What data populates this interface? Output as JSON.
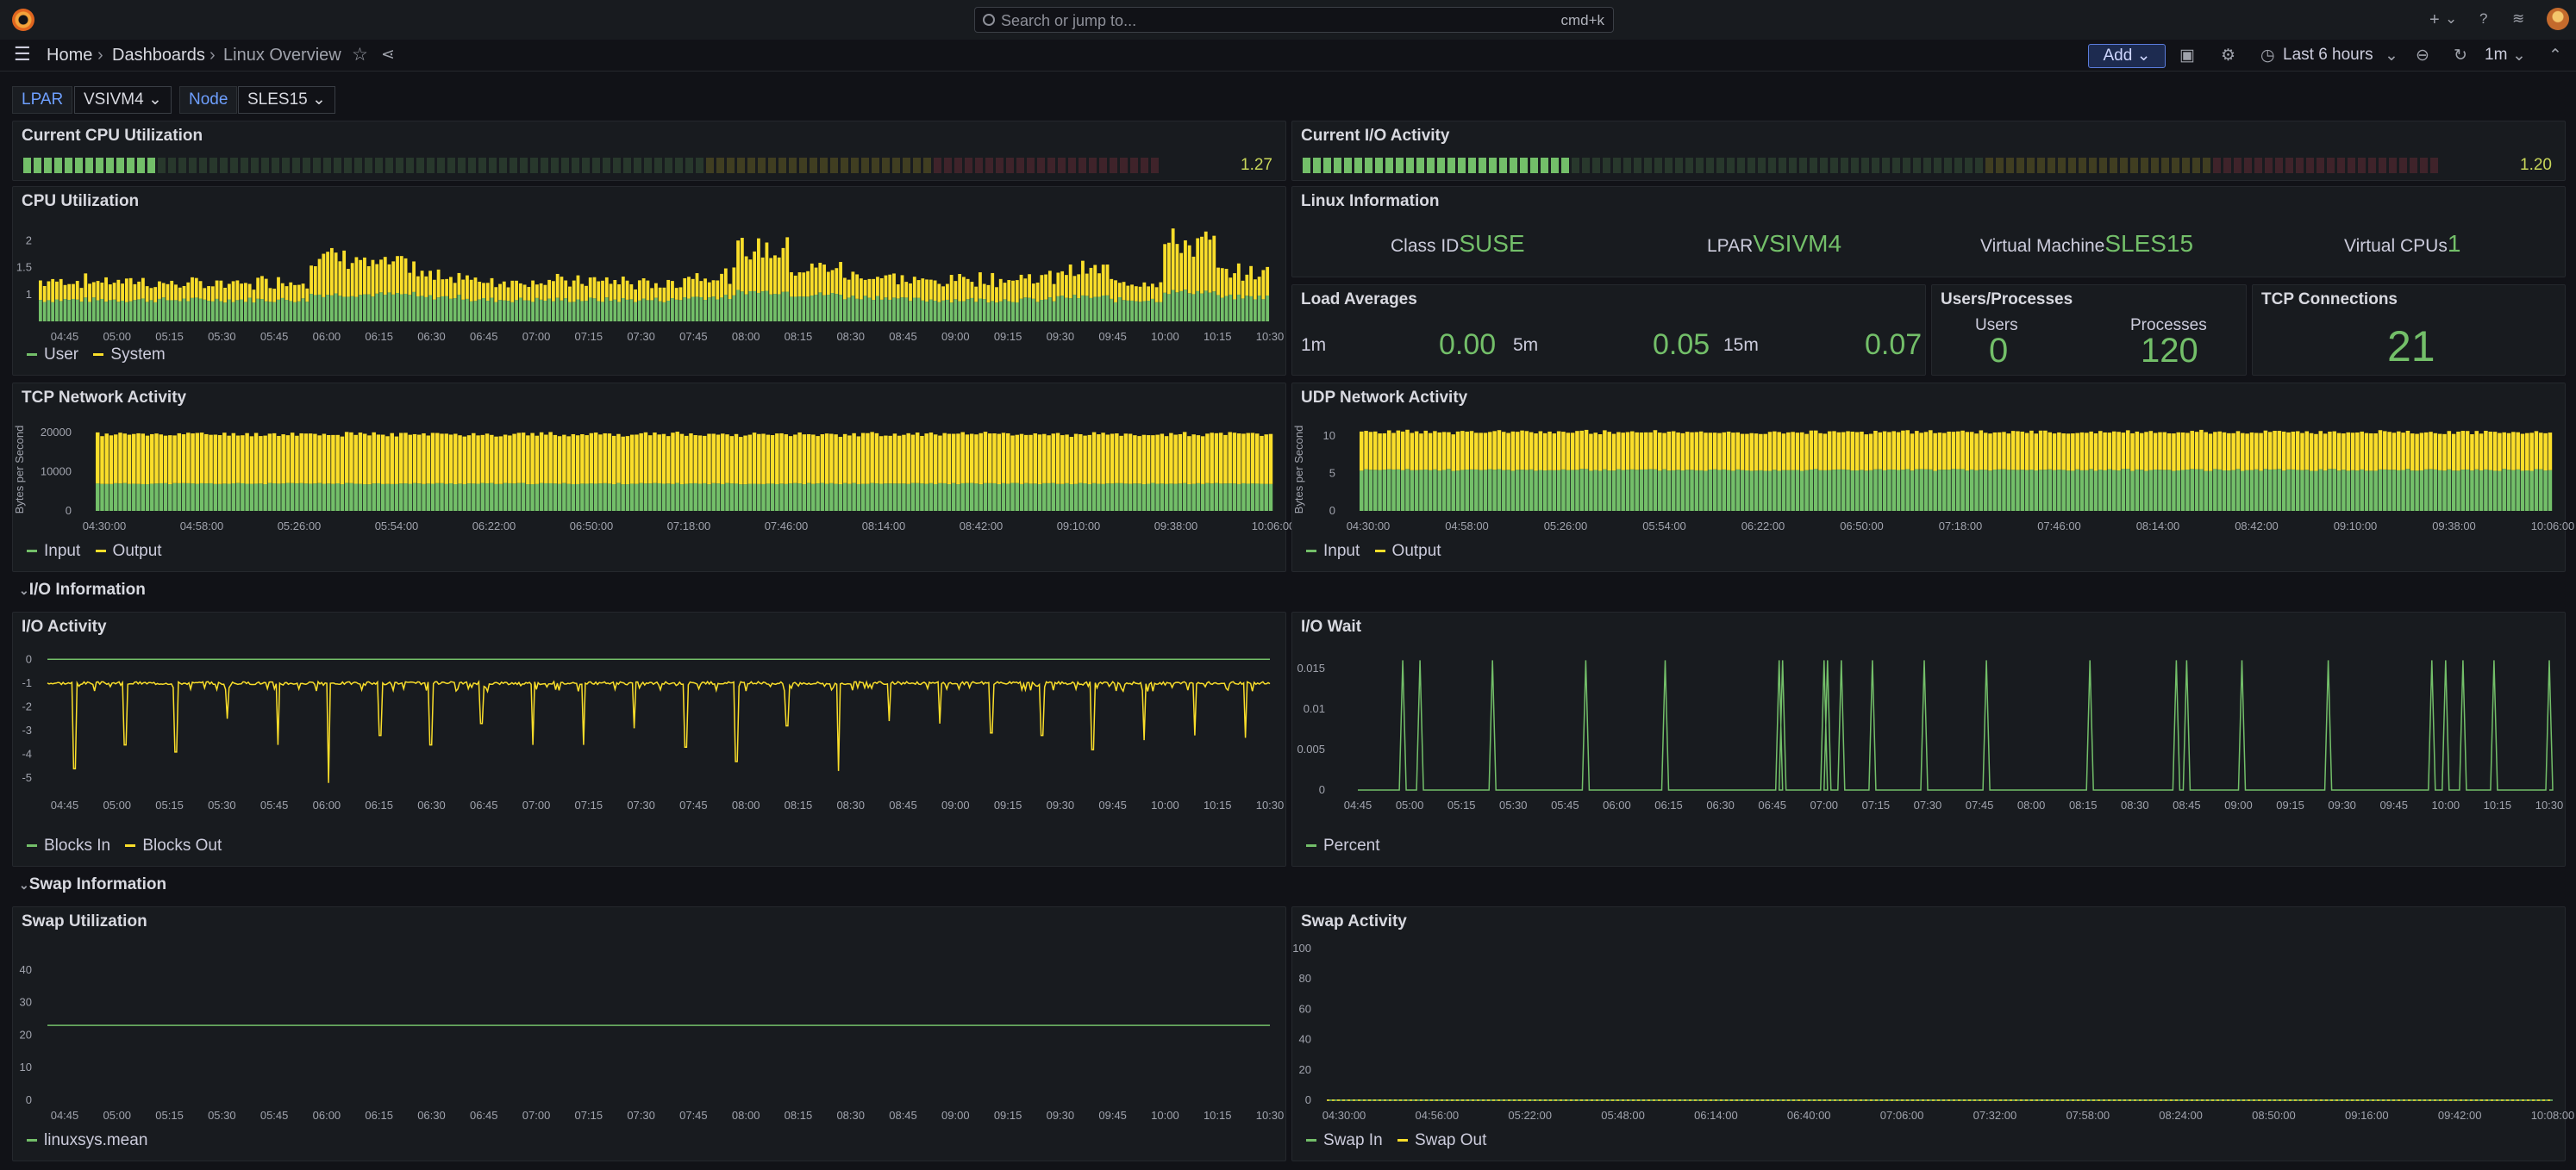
{
  "header": {
    "search_placeholder": "Search or jump to...",
    "search_shortcut": "cmd+k",
    "plus": "+",
    "plus_chevron": "⌄"
  },
  "nav": {
    "breadcrumbs": [
      "Home",
      "Dashboards",
      "Linux Overview"
    ],
    "add_label": "Add",
    "time_range": "Last 6 hours",
    "refresh_interval": "1m"
  },
  "variables": [
    {
      "label": "LPAR",
      "value": "VSIVM4"
    },
    {
      "label": "Node",
      "value": "SLES15"
    }
  ],
  "colors": {
    "green": "#73bf69",
    "yellow": "#fade2a",
    "red": "#f2495c"
  },
  "panels": {
    "cpu_gauge": {
      "title": "Current CPU Utilization",
      "value": "1.27",
      "fill_fraction": 0.11
    },
    "io_gauge": {
      "title": "Current I/O Activity",
      "value": "1.20",
      "fill_fraction": 0.23
    },
    "cpu_util": {
      "title": "CPU Utilization",
      "legend": [
        "User",
        "System"
      ]
    },
    "linux_info": {
      "title": "Linux Information",
      "items": [
        {
          "label": "Class ID",
          "value": "SUSE"
        },
        {
          "label": "LPAR",
          "value": "VSIVM4"
        },
        {
          "label": "Virtual Machine",
          "value": "SLES15"
        },
        {
          "label": "Virtual CPUs",
          "value": "1"
        }
      ]
    },
    "load_avg": {
      "title": "Load Averages",
      "items": [
        {
          "label": "1m",
          "value": "0.00"
        },
        {
          "label": "5m",
          "value": "0.05"
        },
        {
          "label": "15m",
          "value": "0.07"
        }
      ]
    },
    "users_procs": {
      "title": "Users/Processes",
      "users_label": "Users",
      "users_value": "0",
      "procs_label": "Processes",
      "procs_value": "120"
    },
    "tcp_conn": {
      "title": "TCP Connections",
      "value": "21"
    },
    "tcp_net": {
      "title": "TCP Network Activity",
      "ylabel": "Bytes per Second",
      "legend": [
        "Input",
        "Output"
      ]
    },
    "udp_net": {
      "title": "UDP Network Activity",
      "ylabel": "Bytes per Second",
      "legend": [
        "Input",
        "Output"
      ]
    },
    "io_section": "I/O Information",
    "io_activity": {
      "title": "I/O Activity",
      "legend": [
        "Blocks In",
        "Blocks Out"
      ]
    },
    "io_wait": {
      "title": "I/O Wait",
      "legend": [
        "Percent"
      ]
    },
    "swap_section": "Swap Information",
    "swap_util": {
      "title": "Swap Utilization",
      "legend": [
        "linuxsys.mean"
      ]
    },
    "swap_activity": {
      "title": "Swap Activity",
      "legend": [
        "Swap In",
        "Swap Out"
      ]
    }
  },
  "chart_data": [
    {
      "id": "cpu_util",
      "type": "bar",
      "stacked": true,
      "x_ticks": [
        "04:45",
        "05:00",
        "05:15",
        "05:30",
        "05:45",
        "06:00",
        "06:15",
        "06:30",
        "06:45",
        "07:00",
        "07:15",
        "07:30",
        "07:45",
        "08:00",
        "08:15",
        "08:30",
        "08:45",
        "09:00",
        "09:15",
        "09:30",
        "09:45",
        "10:00",
        "10:15",
        "10:30"
      ],
      "y_ticks": [
        1,
        1.5,
        2
      ],
      "ylim": [
        0.5,
        2.2
      ],
      "series": [
        {
          "name": "User",
          "color": "#73bf69",
          "profile": [
            0.9,
            0.9,
            0.9,
            0.9,
            0.9,
            1.0,
            1.0,
            0.95,
            0.9,
            0.9,
            0.9,
            0.9,
            0.95,
            1.05,
            1.0,
            0.95,
            0.9,
            0.9,
            0.9,
            0.95,
            0.9,
            1.05,
            0.95,
            0.9
          ]
        },
        {
          "name": "System",
          "color": "#fade2a",
          "profile": [
            0.35,
            0.35,
            0.3,
            0.3,
            0.35,
            0.7,
            0.55,
            0.4,
            0.35,
            0.35,
            0.35,
            0.3,
            0.4,
            0.8,
            0.5,
            0.4,
            0.35,
            0.4,
            0.4,
            0.5,
            0.35,
            0.9,
            0.45,
            0.35
          ]
        }
      ]
    },
    {
      "id": "tcp_net",
      "type": "bar",
      "stacked": true,
      "x_ticks": [
        "04:30:00",
        "04:58:00",
        "05:26:00",
        "05:54:00",
        "06:22:00",
        "06:50:00",
        "07:18:00",
        "07:46:00",
        "08:14:00",
        "08:42:00",
        "09:10:00",
        "09:38:00",
        "10:06:00"
      ],
      "y_ticks": [
        0,
        10000,
        20000
      ],
      "ylim": [
        0,
        22000
      ],
      "series": [
        {
          "name": "Input",
          "color": "#73bf69",
          "value": 7000
        },
        {
          "name": "Output",
          "color": "#fade2a",
          "value": 13000
        }
      ]
    },
    {
      "id": "udp_net",
      "type": "bar",
      "stacked": true,
      "x_ticks": [
        "04:30:00",
        "04:58:00",
        "05:26:00",
        "05:54:00",
        "06:22:00",
        "06:50:00",
        "07:18:00",
        "07:46:00",
        "08:14:00",
        "08:42:00",
        "09:10:00",
        "09:38:00",
        "10:06:00"
      ],
      "y_ticks": [
        0,
        5,
        10
      ],
      "ylim": [
        0,
        11.5
      ],
      "series": [
        {
          "name": "Input",
          "color": "#73bf69",
          "value": 5.5
        },
        {
          "name": "Output",
          "color": "#fade2a",
          "value": 5.2
        }
      ]
    },
    {
      "id": "io_activity",
      "type": "line",
      "x_ticks": [
        "04:45",
        "05:00",
        "05:15",
        "05:30",
        "05:45",
        "06:00",
        "06:15",
        "06:30",
        "06:45",
        "07:00",
        "07:15",
        "07:30",
        "07:45",
        "08:00",
        "08:15",
        "08:30",
        "08:45",
        "09:00",
        "09:15",
        "09:30",
        "09:45",
        "10:00",
        "10:15",
        "10:30"
      ],
      "y_ticks": [
        0,
        -1,
        -2,
        -3,
        -4,
        -5
      ],
      "ylim": [
        -5.5,
        0.3
      ],
      "series": [
        {
          "name": "Blocks In",
          "color": "#73bf69",
          "value": 0
        },
        {
          "name": "Blocks Out",
          "color": "#fade2a",
          "baseline": -1.0,
          "spike_minima": [
            -4.6,
            -3.6,
            -3.9,
            -2.5,
            -3.6,
            -5.2,
            -3.2,
            -3.6,
            -2.7,
            -3.6,
            -3.6,
            -2.9,
            -3.7,
            -4.3,
            -2.8,
            -4.7,
            -2.6,
            -2.7,
            -3.1,
            -3.2,
            -3.8,
            -3.4,
            -3.2,
            -3.3
          ]
        }
      ]
    },
    {
      "id": "io_wait",
      "type": "line",
      "x_ticks": [
        "04:45",
        "05:00",
        "05:15",
        "05:30",
        "05:45",
        "06:00",
        "06:15",
        "06:30",
        "06:45",
        "07:00",
        "07:15",
        "07:30",
        "07:45",
        "08:00",
        "08:15",
        "08:30",
        "08:45",
        "09:00",
        "09:15",
        "09:30",
        "09:45",
        "10:00",
        "10:15",
        "10:30"
      ],
      "y_ticks": [
        0,
        0.005,
        0.01,
        0.015
      ],
      "ylim": [
        0,
        0.017
      ],
      "series": [
        {
          "name": "Percent",
          "color": "#73bf69",
          "spike_value": 0.016,
          "spike_times": [
            "04:58",
            "05:03",
            "05:24",
            "05:51",
            "06:14",
            "06:47",
            "06:48",
            "07:00",
            "07:01",
            "07:05",
            "07:14",
            "07:29",
            "07:47",
            "08:17",
            "08:42",
            "08:45",
            "09:01",
            "09:26",
            "09:56",
            "10:00",
            "10:05",
            "10:14",
            "10:30"
          ]
        }
      ]
    },
    {
      "id": "swap_util",
      "type": "line",
      "x_ticks": [
        "04:45",
        "05:00",
        "05:15",
        "05:30",
        "05:45",
        "06:00",
        "06:15",
        "06:30",
        "06:45",
        "07:00",
        "07:15",
        "07:30",
        "07:45",
        "08:00",
        "08:15",
        "08:30",
        "08:45",
        "09:00",
        "09:15",
        "09:30",
        "09:45",
        "10:00",
        "10:15",
        "10:30"
      ],
      "y_ticks": [
        0,
        10,
        20,
        30,
        40
      ],
      "ylim": [
        0,
        45
      ],
      "series": [
        {
          "name": "linuxsys.mean",
          "color": "#73bf69",
          "value": 23
        }
      ]
    },
    {
      "id": "swap_activity",
      "type": "line",
      "x_ticks": [
        "04:30:00",
        "04:56:00",
        "05:22:00",
        "05:48:00",
        "06:14:00",
        "06:40:00",
        "07:06:00",
        "07:32:00",
        "07:58:00",
        "08:24:00",
        "08:50:00",
        "09:16:00",
        "09:42:00",
        "10:08:00"
      ],
      "y_ticks": [
        0,
        20,
        40,
        60,
        80,
        100
      ],
      "ylim": [
        0,
        100
      ],
      "series": [
        {
          "name": "Swap In",
          "color": "#73bf69",
          "value": 0
        },
        {
          "name": "Swap Out",
          "color": "#fade2a",
          "value": 0
        }
      ]
    }
  ]
}
